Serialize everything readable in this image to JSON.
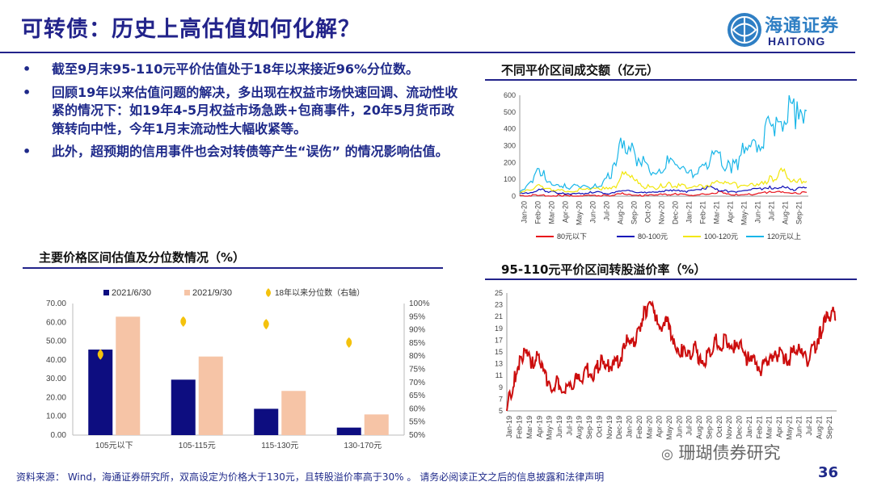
{
  "title": "可转债：历史上高估值如何化解？",
  "logo": {
    "cn": "海通证券",
    "en": "HAITONG"
  },
  "bullet_mark": "•",
  "bullets": [
    "截至9月末95-110元平价估值处于18年以来接近96%分位数。",
    "回顾19年以来估值问题的解决，多出现在权益市场快速回调、流动性收紧的情况下：如19年4-5月权益市场急跌+包商事件，20年5月货币政策转向中性，今年1月末流动性大幅收紧等。",
    "此外，超预期的信用事件也会对转债等产生“误伤” 的情况影响估值。"
  ],
  "chart_data": [
    {
      "type": "bar",
      "title": "主要价格区间估值及分位数情况（%）",
      "categories": [
        "105元以下",
        "105-115元",
        "115-130元",
        "130-170元"
      ],
      "series": [
        {
          "name": "2021/6/30",
          "values": [
            45.5,
            29.5,
            14.0,
            4.0
          ],
          "color": "#0d0d80"
        },
        {
          "name": "2021/9/30",
          "values": [
            63.0,
            41.8,
            23.5,
            11.0
          ],
          "color": "#f6c4a6"
        }
      ],
      "secondary_series": {
        "name": "18年以来分位数（右轴）",
        "type": "scatter",
        "values": [
          80.5,
          93.0,
          92.0,
          85.0
        ],
        "color": "#f4c20d"
      },
      "yticks": [
        "0.00",
        "10.00",
        "20.00",
        "30.00",
        "40.00",
        "50.00",
        "60.00",
        "70.00"
      ],
      "y2ticks": [
        "50%",
        "55%",
        "60%",
        "65%",
        "70%",
        "75%",
        "80%",
        "85%",
        "90%",
        "95%",
        "100%"
      ],
      "ylim": [
        0,
        70
      ],
      "y2lim": [
        50,
        100
      ]
    },
    {
      "type": "line",
      "title": "不同平价区间成交额（亿元）",
      "x_labels": [
        "Jan-20",
        "Feb-20",
        "Mar-20",
        "Apr-20",
        "May-20",
        "Jun-20",
        "Jul-20",
        "Aug-20",
        "Sep-20",
        "Oct-20",
        "Nov-20",
        "Dec-20",
        "Jan-21",
        "Feb-21",
        "Mar-21",
        "Apr-21",
        "May-21",
        "Jun-21",
        "Jul-21",
        "Aug-21",
        "Sep-21"
      ],
      "yticks": [
        "0",
        "100",
        "200",
        "300",
        "400",
        "500",
        "600"
      ],
      "ylim": [
        0,
        600
      ],
      "series": [
        {
          "name": "80元以下",
          "color": "#e8101a",
          "values": [
            2,
            3,
            4,
            2,
            3,
            2,
            5,
            3,
            2,
            2,
            3,
            2,
            3,
            4,
            5,
            8,
            20,
            12,
            6,
            5,
            4,
            3,
            8,
            10,
            12,
            14,
            10,
            8,
            9,
            12,
            15,
            25,
            18,
            12,
            10,
            15,
            12,
            14,
            20,
            25,
            30,
            28,
            22,
            18,
            20,
            22
          ]
        },
        {
          "name": "80-100元",
          "color": "#1010b8",
          "values": [
            15,
            20,
            25,
            40,
            30,
            25,
            20,
            18,
            15,
            20,
            18,
            22,
            25,
            20,
            18,
            25,
            30,
            28,
            25,
            20,
            18,
            25,
            30,
            40,
            35,
            28,
            25,
            30,
            35,
            45,
            60,
            40,
            30,
            28,
            25,
            30,
            35,
            40,
            45,
            50,
            55,
            50,
            45,
            40,
            45,
            50
          ]
        },
        {
          "name": "100-120元",
          "color": "#f2e70c",
          "values": [
            20,
            30,
            35,
            60,
            45,
            40,
            35,
            30,
            28,
            35,
            40,
            38,
            45,
            50,
            55,
            60,
            130,
            110,
            90,
            60,
            55,
            50,
            60,
            70,
            65,
            60,
            55,
            50,
            55,
            60,
            70,
            90,
            80,
            70,
            65,
            70,
            75,
            80,
            90,
            100,
            120,
            140,
            110,
            90,
            100,
            110
          ]
        },
        {
          "name": "120元以上",
          "color": "#19b6e8",
          "values": [
            30,
            50,
            80,
            170,
            110,
            90,
            70,
            60,
            50,
            70,
            60,
            50,
            60,
            80,
            120,
            200,
            360,
            310,
            250,
            200,
            170,
            150,
            180,
            200,
            180,
            160,
            150,
            140,
            160,
            180,
            240,
            220,
            190,
            170,
            200,
            280,
            260,
            300,
            350,
            420,
            380,
            450,
            520,
            480,
            430,
            410
          ]
        }
      ]
    },
    {
      "type": "line",
      "title": "95-110元平价区间转股溢价率（%）",
      "x_labels": [
        "Jan-19",
        "Feb-19",
        "Mar-19",
        "Apr-19",
        "May-19",
        "Jun-19",
        "Jul-19",
        "Aug-19",
        "Sep-19",
        "Oct-19",
        "Nov-19",
        "Dec-19",
        "Jan-20",
        "Feb-20",
        "Mar-20",
        "Apr-20",
        "May-20",
        "Jun-20",
        "Jul-20",
        "Aug-20",
        "Sep-20",
        "Oct-20",
        "Nov-20",
        "Dec-20",
        "Jan-21",
        "Feb-21",
        "Mar-21",
        "Apr-21",
        "May-21",
        "Jun-21",
        "Jul-21",
        "Aug-21",
        "Sep-21"
      ],
      "yticks": [
        "5",
        "7",
        "9",
        "11",
        "13",
        "15",
        "17",
        "19",
        "21",
        "23",
        "25"
      ],
      "ylim": [
        5,
        25
      ],
      "series": [
        {
          "name": "95-110元平价区间转股溢价率",
          "color": "#cc0d0d",
          "values": [
            5.5,
            8,
            11,
            13.5,
            15,
            14,
            13,
            14.5,
            12,
            11,
            10,
            9,
            10,
            9,
            8.5,
            9.5,
            10.5,
            10,
            11.5,
            12,
            11,
            12,
            13.5,
            12,
            13,
            12.5,
            13.5,
            15,
            17,
            16,
            17.5,
            19.5,
            21.5,
            23,
            22,
            21,
            19.5,
            20.5,
            19,
            17,
            16,
            15,
            14,
            15,
            15.5,
            14,
            13.5,
            14.5,
            15.5,
            17,
            16,
            17.5,
            16.5,
            16,
            15,
            16,
            14,
            13,
            14,
            12,
            12.5,
            14,
            13,
            14.5,
            15,
            13.5,
            14,
            15,
            15.5,
            14,
            13.5,
            15,
            16,
            18,
            19.5,
            21,
            22,
            21
          ]
        }
      ]
    }
  ],
  "source": "资料来源： Wind，海通证券研究所，双高设定为价格大于130元，且转股溢价率高于30%",
  "disclaimer": "请务必阅读正文之后的信息披露和法律声明",
  "page_number": "36",
  "watermark": "珊瑚债券研究"
}
